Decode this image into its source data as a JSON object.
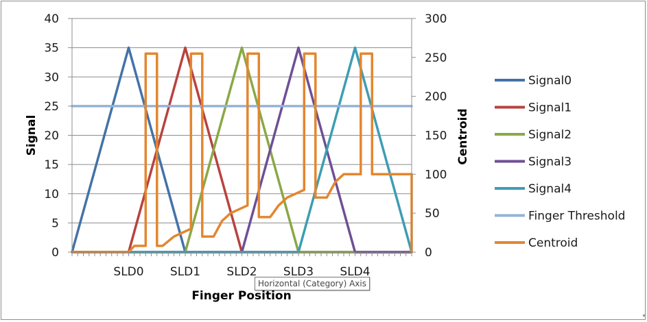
{
  "chart_data": {
    "type": "line",
    "xlabel": "Finger Position",
    "ylabel": "Signal",
    "y2label": "Centroid",
    "ylim": [
      0,
      40
    ],
    "y2lim": [
      0,
      300
    ],
    "yticks": [
      0,
      5,
      10,
      15,
      20,
      25,
      30,
      35,
      40
    ],
    "y2ticks": [
      0,
      50,
      100,
      150,
      200,
      250,
      300
    ],
    "x_range": [
      0,
      60
    ],
    "categories": [
      {
        "label": "SLD0",
        "x": 10
      },
      {
        "label": "SLD1",
        "x": 20
      },
      {
        "label": "SLD2",
        "x": 30
      },
      {
        "label": "SLD3",
        "x": 40
      },
      {
        "label": "SLD4",
        "x": 50
      }
    ],
    "grid": "horizontal major gridlines",
    "legend_position": "right",
    "series": [
      {
        "name": "Signal0",
        "axis": "left",
        "color": "#4472a8",
        "x": [
          0,
          10,
          20,
          60
        ],
        "y": [
          0,
          35,
          0,
          0
        ]
      },
      {
        "name": "Signal1",
        "axis": "left",
        "color": "#b7433f",
        "x": [
          0,
          10,
          20,
          30,
          60
        ],
        "y": [
          0,
          0,
          35,
          0,
          0
        ]
      },
      {
        "name": "Signal2",
        "axis": "left",
        "color": "#89a846",
        "x": [
          0,
          20,
          30,
          40,
          60
        ],
        "y": [
          0,
          0,
          35,
          0,
          0
        ]
      },
      {
        "name": "Signal3",
        "axis": "left",
        "color": "#6e4f95",
        "x": [
          0,
          30,
          40,
          50,
          60
        ],
        "y": [
          0,
          0,
          35,
          0,
          0
        ]
      },
      {
        "name": "Signal4",
        "axis": "left",
        "color": "#3d9db3",
        "x": [
          0,
          40,
          50,
          60
        ],
        "y": [
          0,
          0,
          35,
          0
        ]
      },
      {
        "name": "Finger Threshold",
        "axis": "left",
        "color": "#95b3d7",
        "x": [
          0,
          60
        ],
        "y": [
          25,
          25
        ]
      },
      {
        "name": "Centroid",
        "axis": "right",
        "color": "#e3862f",
        "x": [
          0,
          10,
          11,
          13,
          13,
          15,
          15,
          16,
          18,
          21,
          21,
          23,
          23,
          25,
          26.5,
          28,
          31,
          31,
          33,
          33,
          35,
          36.5,
          38,
          41,
          41,
          43,
          43,
          45,
          46.5,
          48,
          51,
          51,
          53,
          53,
          55,
          60,
          60
        ],
        "y": [
          0,
          0,
          8,
          8,
          255,
          255,
          8,
          8,
          20,
          30,
          255,
          255,
          20,
          20,
          40,
          50,
          60,
          255,
          255,
          45,
          45,
          60,
          70,
          80,
          255,
          255,
          70,
          70,
          90,
          100,
          100,
          255,
          255,
          100,
          100,
          100,
          0
        ]
      }
    ]
  },
  "tooltip": "Horizontal (Category) Axis"
}
